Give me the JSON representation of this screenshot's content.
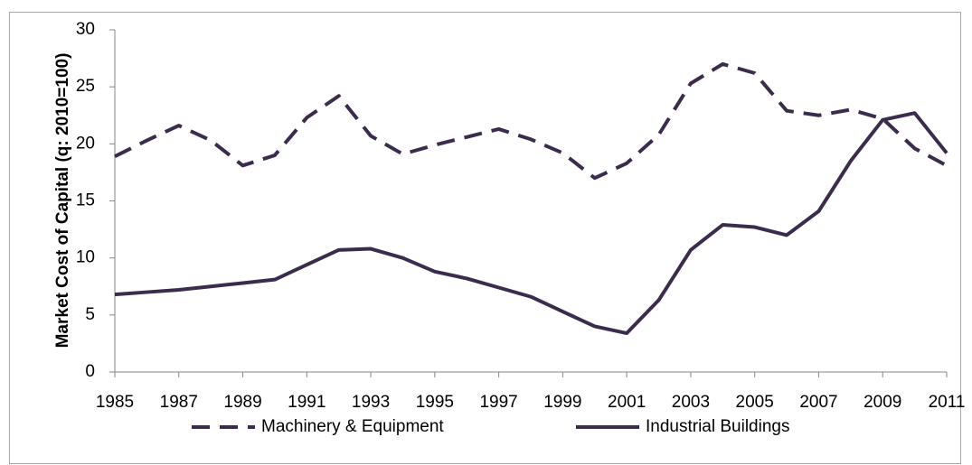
{
  "chart_data": {
    "type": "line",
    "y_label": "Market Cost of Capital (q: 2010=100)",
    "x": [
      1985,
      1986,
      1987,
      1988,
      1989,
      1990,
      1991,
      1992,
      1993,
      1994,
      1995,
      1996,
      1997,
      1998,
      1999,
      2000,
      2001,
      2002,
      2003,
      2004,
      2005,
      2006,
      2007,
      2008,
      2009,
      2010,
      2011
    ],
    "xlim": [
      1985,
      2011
    ],
    "xticks": [
      1985,
      1987,
      1989,
      1991,
      1993,
      1995,
      1997,
      1999,
      2001,
      2003,
      2005,
      2007,
      2009,
      2011
    ],
    "ylim": [
      0,
      30
    ],
    "yticks": [
      0,
      5,
      10,
      15,
      20,
      25,
      30
    ],
    "legend": "bottom",
    "series": [
      {
        "name": "Machinery & Equipment",
        "color": "#3b2c4e",
        "dash": true,
        "values": [
          18.9,
          20.3,
          21.6,
          20.3,
          18.1,
          19.0,
          22.3,
          24.2,
          20.7,
          19.1,
          19.9,
          20.6,
          21.3,
          20.4,
          19.2,
          17.0,
          18.3,
          20.8,
          25.3,
          27.0,
          26.2,
          22.9,
          22.5,
          23.0,
          22.2,
          19.6,
          18.1
        ]
      },
      {
        "name": "Industrial Buildings",
        "color": "#3b2c4e",
        "dash": false,
        "values": [
          6.8,
          7.0,
          7.2,
          7.5,
          7.8,
          8.1,
          9.4,
          10.7,
          10.8,
          10.0,
          8.8,
          8.2,
          7.4,
          6.6,
          5.3,
          4.0,
          3.4,
          6.3,
          10.7,
          12.9,
          12.7,
          12.0,
          14.1,
          18.5,
          22.1,
          22.7,
          19.2
        ]
      }
    ]
  }
}
